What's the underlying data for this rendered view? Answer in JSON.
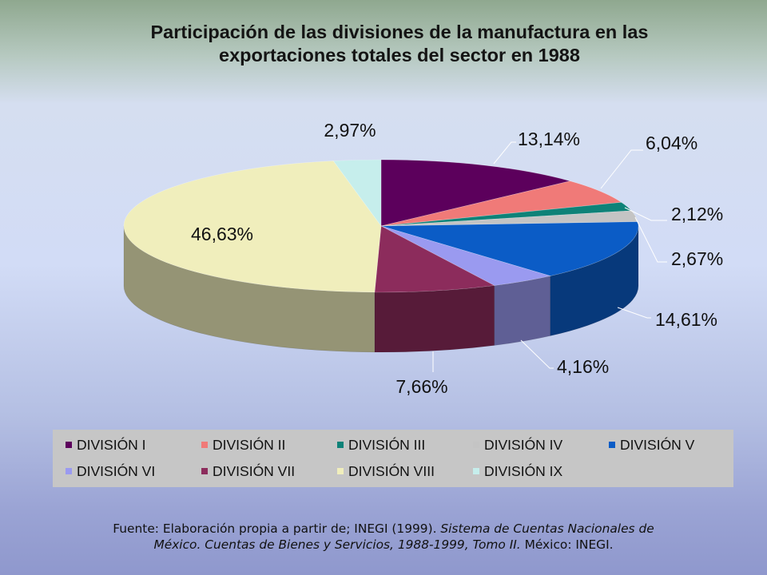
{
  "chart_data": {
    "type": "pie",
    "style": "3d",
    "title_lines": [
      "Participación de las divisiones de la manufactura en las",
      "exportaciones totales del sector en 1988"
    ],
    "categories": [
      "DIVISIÓN I",
      "DIVISIÓN II",
      "DIVISIÓN III",
      "DIVISIÓN IV",
      "DIVISIÓN V",
      "DIVISIÓN VI",
      "DIVISIÓN VII",
      "DIVISIÓN VIII",
      "DIVISIÓN IX"
    ],
    "values": [
      13.14,
      6.04,
      2.12,
      2.67,
      14.61,
      4.16,
      7.66,
      46.63,
      2.97
    ],
    "labels": [
      "13,14%",
      "6,04%",
      "2,12%",
      "2,67%",
      "14,61%",
      "4,16%",
      "7,66%",
      "46,63%",
      "2,97%"
    ],
    "colors": [
      "#5c005c",
      "#f07a78",
      "#0e8278",
      "#c4c4c4",
      "#0b5cc6",
      "#9a9af0",
      "#8c2c5c",
      "#f0eebc",
      "#c6eeec"
    ],
    "legend": {
      "position": "bottom"
    }
  },
  "source_note": {
    "prefix": "Fuente: Elaboración propia a partir de; INEGI (1999). ",
    "italic": "Sistema de Cuentas Nacionales de México. Cuentas de Bienes y Servicios, 1988-1999, Tomo II.",
    "suffix": " México: INEGI."
  }
}
